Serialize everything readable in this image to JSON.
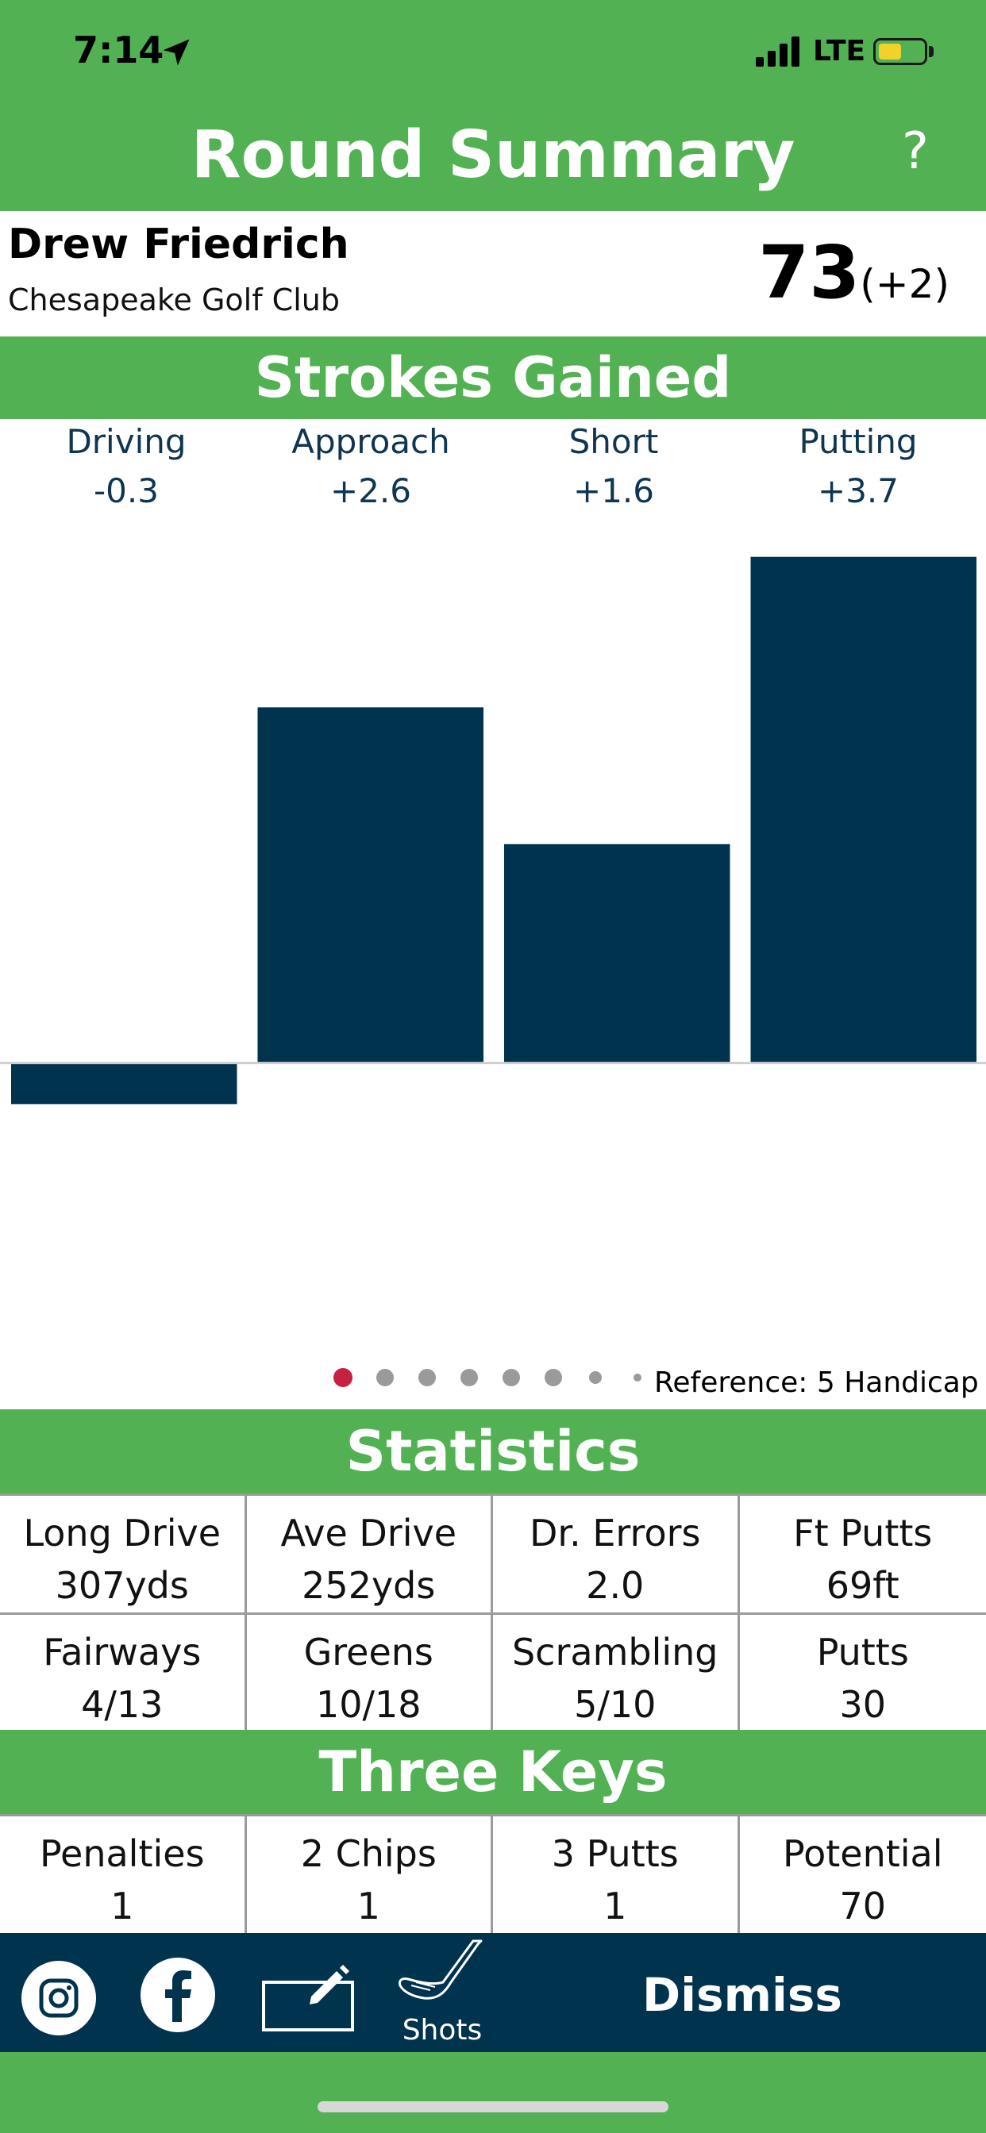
{
  "status_bar": {
    "time": "7:14",
    "network": "LTE"
  },
  "header": {
    "title": "Round Summary",
    "help_label": "?"
  },
  "player": {
    "name": "Drew Friedrich",
    "course": "Chesapeake Golf Club",
    "score": "73",
    "score_to_par": "(+2)"
  },
  "strokes_gained": {
    "title": "Strokes Gained",
    "categories": [
      {
        "name": "Driving",
        "value": "-0.3"
      },
      {
        "name": "Approach",
        "value": "+2.6"
      },
      {
        "name": "Short",
        "value": "+1.6"
      },
      {
        "name": "Putting",
        "value": "+3.7"
      }
    ],
    "reference": "Reference: 5 Handicap",
    "page_count": 8,
    "active_page": 0
  },
  "chart_data": {
    "type": "bar",
    "categories": [
      "Driving",
      "Approach",
      "Short",
      "Putting"
    ],
    "values": [
      -0.3,
      2.6,
      1.6,
      3.7
    ],
    "ylim": [
      -1.8,
      4.0
    ],
    "bar_color": "#00334d",
    "grid": false
  },
  "statistics": {
    "title": "Statistics",
    "items": [
      {
        "label": "Long Drive",
        "value": "307yds"
      },
      {
        "label": "Ave Drive",
        "value": "252yds"
      },
      {
        "label": "Dr. Errors",
        "value": "2.0"
      },
      {
        "label": "Ft Putts",
        "value": "69ft"
      },
      {
        "label": "Fairways",
        "value": "4/13"
      },
      {
        "label": "Greens",
        "value": "10/18"
      },
      {
        "label": "Scrambling",
        "value": "5/10"
      },
      {
        "label": "Putts",
        "value": "30"
      }
    ]
  },
  "three_keys": {
    "title": "Three Keys",
    "items": [
      {
        "label": "Penalties",
        "value": "1"
      },
      {
        "label": "2 Chips",
        "value": "1"
      },
      {
        "label": "3 Putts",
        "value": "1"
      },
      {
        "label": "Potential",
        "value": "70"
      }
    ]
  },
  "toolbar": {
    "icons": [
      "instagram-icon",
      "facebook-icon",
      "edit-icon",
      "golf-club-icon"
    ],
    "shots_label": "Shots",
    "dismiss_label": "Dismiss"
  },
  "colors": {
    "green": "#52b153",
    "navy": "#00334d",
    "active_dot": "#c8203f",
    "inactive_dot": "#9a9a9a"
  }
}
